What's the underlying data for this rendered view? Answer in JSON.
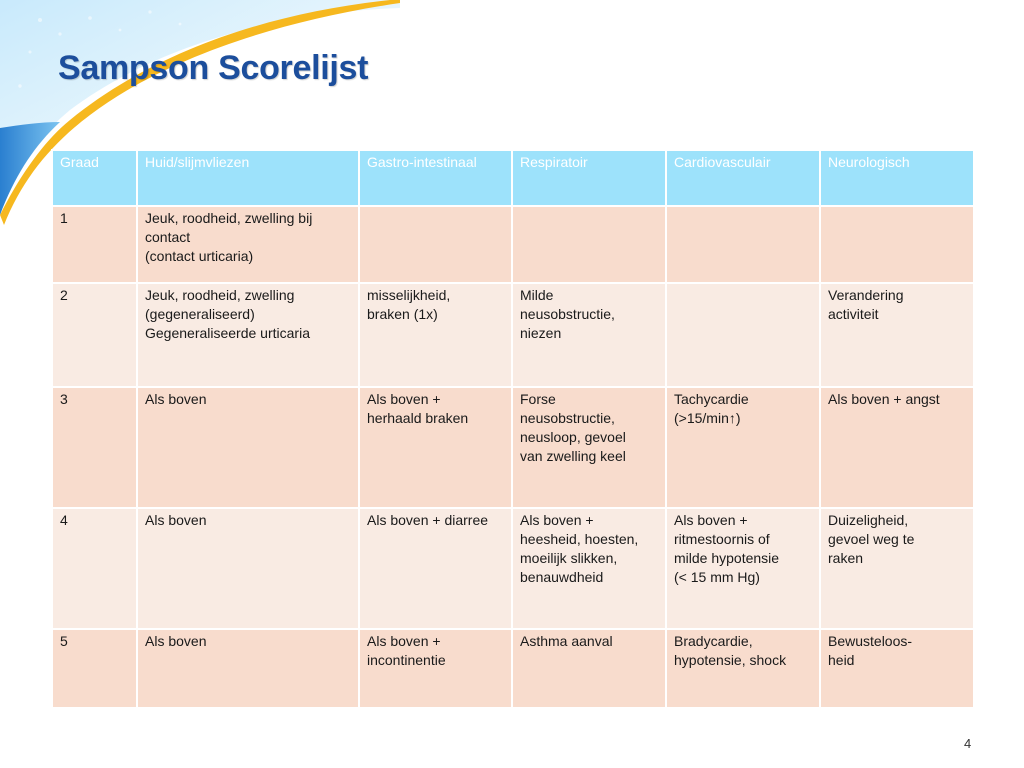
{
  "slide": {
    "title": "Sampson Scorelijst",
    "page_number": "4"
  },
  "colors": {
    "title": "#1c4e9c",
    "header_bg": "#9de2fb",
    "row_odd_bg": "#f8dccd",
    "row_even_bg": "#f9ebe3",
    "accent_yellow": "#f6b81f",
    "accent_blue": "#2a7fd0"
  },
  "table": {
    "headers": [
      "Graad",
      "Huid/slijmvliezen",
      "Gastro-intestinaal",
      "Respiratoir",
      "Cardiovasculair",
      "Neurologisch"
    ],
    "rows": [
      [
        "1",
        "Jeuk, roodheid, zwelling bij contact\n(contact urticaria)",
        "",
        "",
        "",
        ""
      ],
      [
        "2",
        "Jeuk, roodheid, zwelling\n(gegeneraliseerd)\nGegeneraliseerde urticaria",
        "misselijkheid,\nbraken (1x)",
        "Milde\nneusobstructie,\nniezen",
        "",
        "Verandering\nactiviteit"
      ],
      [
        "3",
        "Als boven",
        "Als boven +\nherhaald braken",
        "Forse\nneusobstructie,\nneusloop, gevoel\nvan zwelling keel",
        "Tachycardie\n(>15/min↑)",
        "Als boven + angst"
      ],
      [
        "4",
        "Als boven",
        "Als boven + diarree",
        "Als boven +\nheesheid, hoesten,\nmoeilijk slikken,\nbenauwdheid",
        "Als boven +\nritmestoornis of\nmilde hypotensie\n(< 15 mm Hg)",
        "Duizeligheid,\ngevoel weg te\nraken"
      ],
      [
        "5",
        "Als boven",
        "Als boven +\nincontinentie",
        "Asthma aanval",
        "Bradycardie,\nhypotensie, shock",
        "Bewusteloos-\nheid"
      ]
    ]
  }
}
